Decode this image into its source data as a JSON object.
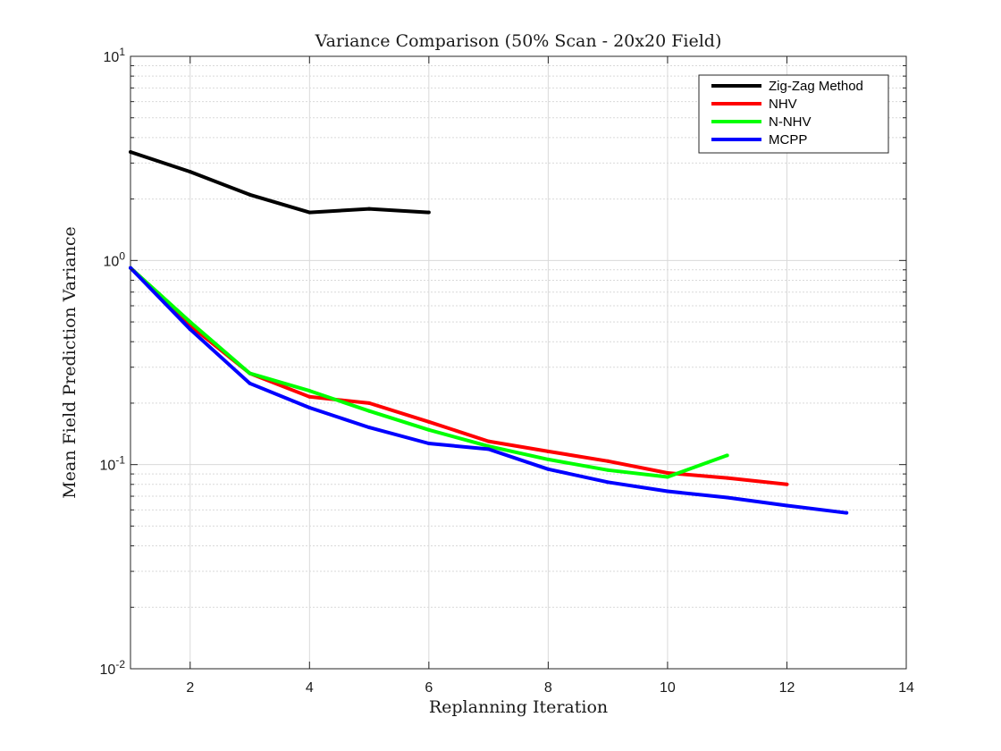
{
  "chart_data": {
    "type": "line",
    "title": "Variance Comparison (50% Scan - 20x20 Field)",
    "xlabel": "Replanning Iteration",
    "ylabel": "Mean Field Prediction Variance",
    "xlim": [
      1,
      14
    ],
    "ylim": [
      0.01,
      10
    ],
    "yscale": "log",
    "grid": true,
    "legend_position": "top-right",
    "x_ticks": [
      2,
      4,
      6,
      8,
      10,
      12,
      14
    ],
    "y_ticks": [
      {
        "value": 0.01,
        "base": "10",
        "exp": "-2"
      },
      {
        "value": 0.1,
        "base": "10",
        "exp": "-1"
      },
      {
        "value": 1,
        "base": "10",
        "exp": "0"
      },
      {
        "value": 10,
        "base": "10",
        "exp": "1"
      }
    ],
    "series": [
      {
        "name": "Zig-Zag Method",
        "color": "#000000",
        "x": [
          1,
          2,
          3,
          4,
          5,
          6
        ],
        "values": [
          3.4,
          2.72,
          2.1,
          1.72,
          1.79,
          1.72
        ]
      },
      {
        "name": "NHV",
        "color": "#ff0000",
        "x": [
          1,
          2,
          3,
          4,
          5,
          6,
          7,
          8,
          9,
          10,
          11,
          12
        ],
        "values": [
          0.92,
          0.48,
          0.28,
          0.215,
          0.2,
          0.162,
          0.13,
          0.116,
          0.104,
          0.091,
          0.086,
          0.08
        ]
      },
      {
        "name": "N-NHV",
        "color": "#00ff00",
        "x": [
          1,
          2,
          3,
          4,
          5,
          6,
          7,
          8,
          9,
          10,
          11
        ],
        "values": [
          0.92,
          0.5,
          0.28,
          0.23,
          0.183,
          0.148,
          0.123,
          0.106,
          0.094,
          0.087,
          0.111
        ]
      },
      {
        "name": "MCPP",
        "color": "#0000ff",
        "x": [
          1,
          2,
          3,
          4,
          5,
          6,
          7,
          8,
          9,
          10,
          11,
          12,
          13
        ],
        "values": [
          0.92,
          0.46,
          0.25,
          0.19,
          0.152,
          0.127,
          0.119,
          0.095,
          0.082,
          0.074,
          0.069,
          0.063,
          0.058
        ]
      }
    ]
  }
}
